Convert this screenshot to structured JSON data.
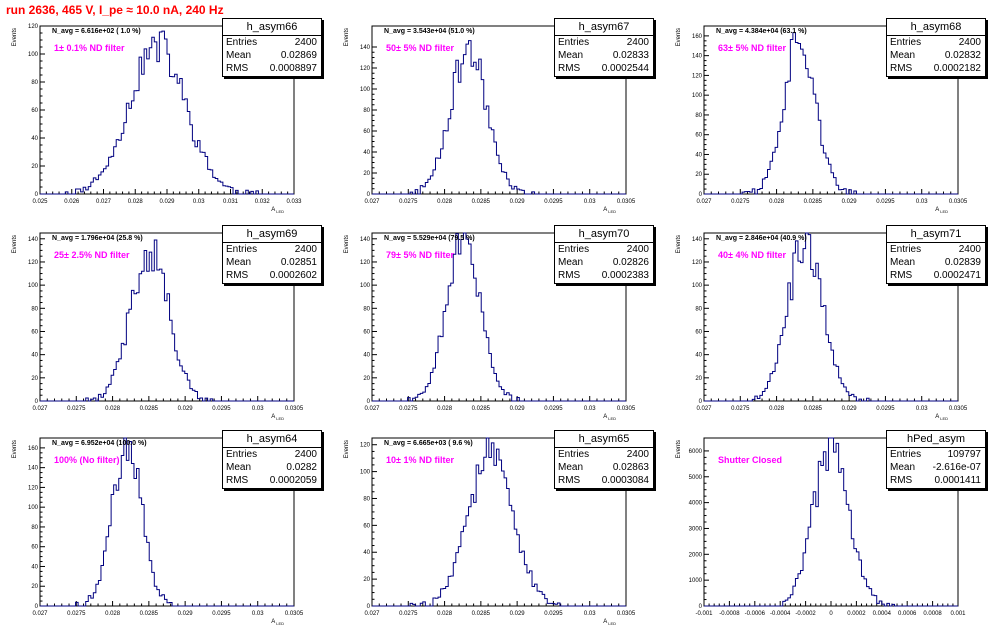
{
  "title": "run 2636,   465 V, I_pe ≈ 10.0 nA, 240 Hz",
  "colors": {
    "title": "#ff0000",
    "histogram": "#000080",
    "label": "#ff00ff",
    "frame": "#000000"
  },
  "stat_labels": {
    "entries": "Entries",
    "mean": "Mean",
    "rms": "RMS"
  },
  "chart_data": [
    {
      "type": "histogram",
      "name": "h_asym66",
      "ylabel": "Events",
      "xlabel": "A_LED",
      "n_avg": "N_avg = 6.616e+02 ( 1.0 %)",
      "filter": "1± 0.1% ND filter",
      "stats": {
        "entries": "2400",
        "mean": "0.02869",
        "rms": "0.0008897"
      },
      "xlim": [
        0.025,
        0.033
      ],
      "ylim": [
        0,
        120
      ],
      "x_ticks": [
        "0.025",
        "0.026",
        "0.027",
        "0.028",
        "0.029",
        "0.03",
        "0.031",
        "0.032",
        "0.033"
      ],
      "y_ticks": [
        "0",
        "20",
        "40",
        "60",
        "80",
        "100",
        "120"
      ],
      "shape": {
        "mean": 0.02869,
        "sigma": 0.00089,
        "peak": 105,
        "seed": 11
      }
    },
    {
      "type": "histogram",
      "name": "h_asym67",
      "ylabel": "Events",
      "xlabel": "A_LED",
      "n_avg": "N_avg = 3.543e+04 (51.0 %)",
      "filter": "50± 5% ND filter",
      "stats": {
        "entries": "2400",
        "mean": "0.02833",
        "rms": "0.0002544"
      },
      "xlim": [
        0.027,
        0.0305
      ],
      "ylim": [
        0,
        160
      ],
      "x_ticks": [
        "0.027",
        "0.0275",
        "0.028",
        "0.0285",
        "0.029",
        "0.0295",
        "0.03",
        "0.0305"
      ],
      "y_ticks": [
        "0",
        "20",
        "40",
        "60",
        "80",
        "100",
        "120",
        "140"
      ],
      "shape": {
        "mean": 0.02833,
        "sigma": 0.000254,
        "peak": 138,
        "seed": 23
      }
    },
    {
      "type": "histogram",
      "name": "h_asym68",
      "ylabel": "Events",
      "xlabel": "A_LED",
      "n_avg": "N_avg = 4.384e+04 (63.1 %)",
      "filter": "63± 5% ND filter",
      "stats": {
        "entries": "2400",
        "mean": "0.02832",
        "rms": "0.0002182"
      },
      "xlim": [
        0.027,
        0.0305
      ],
      "ylim": [
        0,
        170
      ],
      "x_ticks": [
        "0.027",
        "0.0275",
        "0.028",
        "0.0285",
        "0.029",
        "0.0295",
        "0.03",
        "0.0305"
      ],
      "y_ticks": [
        "0",
        "20",
        "40",
        "60",
        "80",
        "100",
        "120",
        "140",
        "160"
      ],
      "shape": {
        "mean": 0.02832,
        "sigma": 0.000218,
        "peak": 160,
        "seed": 37
      }
    },
    {
      "type": "histogram",
      "name": "h_asym69",
      "ylabel": "Events",
      "xlabel": "A_LED",
      "n_avg": "N_avg = 1.796e+04 (25.8 %)",
      "filter": "25± 2.5% ND filter",
      "stats": {
        "entries": "2400",
        "mean": "0.02851",
        "rms": "0.0002602"
      },
      "xlim": [
        0.027,
        0.0305
      ],
      "ylim": [
        0,
        145
      ],
      "x_ticks": [
        "0.027",
        "0.0275",
        "0.028",
        "0.0285",
        "0.029",
        "0.0295",
        "0.03",
        "0.0305"
      ],
      "y_ticks": [
        "0",
        "20",
        "40",
        "60",
        "80",
        "100",
        "120",
        "140"
      ],
      "shape": {
        "mean": 0.02851,
        "sigma": 0.00026,
        "peak": 132,
        "seed": 41
      }
    },
    {
      "type": "histogram",
      "name": "h_asym70",
      "ylabel": "Events",
      "xlabel": "A_LED",
      "n_avg": "N_avg = 5.529e+04 (79.5 %)",
      "filter": "79± 5% ND filter",
      "stats": {
        "entries": "2400",
        "mean": "0.02826",
        "rms": "0.0002383"
      },
      "xlim": [
        0.027,
        0.0305
      ],
      "ylim": [
        0,
        145
      ],
      "x_ticks": [
        "0.027",
        "0.0275",
        "0.028",
        "0.0285",
        "0.029",
        "0.0295",
        "0.03",
        "0.0305"
      ],
      "y_ticks": [
        "0",
        "20",
        "40",
        "60",
        "80",
        "100",
        "120",
        "140"
      ],
      "shape": {
        "mean": 0.02826,
        "sigma": 0.000238,
        "peak": 140,
        "seed": 53
      }
    },
    {
      "type": "histogram",
      "name": "h_asym71",
      "ylabel": "Events",
      "xlabel": "A_LED",
      "n_avg": "N_avg = 2.846e+04 (40.9 %)",
      "filter": "40± 4% ND filter",
      "stats": {
        "entries": "2400",
        "mean": "0.02839",
        "rms": "0.0002471"
      },
      "xlim": [
        0.027,
        0.0305
      ],
      "ylim": [
        0,
        145
      ],
      "x_ticks": [
        "0.027",
        "0.0275",
        "0.028",
        "0.0285",
        "0.029",
        "0.0295",
        "0.03",
        "0.0305"
      ],
      "y_ticks": [
        "0",
        "20",
        "40",
        "60",
        "80",
        "100",
        "120",
        "140"
      ],
      "shape": {
        "mean": 0.02839,
        "sigma": 0.000247,
        "peak": 135,
        "seed": 67
      }
    },
    {
      "type": "histogram",
      "name": "h_asym64",
      "ylabel": "Events",
      "xlabel": "A_LED",
      "n_avg": "N_avg = 6.952e+04 (100.0 %)",
      "filter": "100% (No filter)",
      "stats": {
        "entries": "2400",
        "mean": "0.0282",
        "rms": "0.0002059"
      },
      "xlim": [
        0.027,
        0.0305
      ],
      "ylim": [
        0,
        170
      ],
      "x_ticks": [
        "0.027",
        "0.0275",
        "0.028",
        "0.0285",
        "0.029",
        "0.0295",
        "0.03",
        "0.0305"
      ],
      "y_ticks": [
        "0",
        "20",
        "40",
        "60",
        "80",
        "100",
        "120",
        "140",
        "160"
      ],
      "shape": {
        "mean": 0.0282,
        "sigma": 0.000206,
        "peak": 162,
        "seed": 71
      }
    },
    {
      "type": "histogram",
      "name": "h_asym65",
      "ylabel": "Events",
      "xlabel": "A_LED",
      "n_avg": "N_avg = 6.665e+03 ( 9.6 %)",
      "filter": "10± 1% ND filter",
      "stats": {
        "entries": "2400",
        "mean": "0.02863",
        "rms": "0.0003084"
      },
      "xlim": [
        0.027,
        0.0305
      ],
      "ylim": [
        0,
        125
      ],
      "x_ticks": [
        "0.027",
        "0.0275",
        "0.028",
        "0.0285",
        "0.029",
        "0.0295",
        "0.03",
        "0.0305"
      ],
      "y_ticks": [
        "0",
        "20",
        "40",
        "60",
        "80",
        "100",
        "120"
      ],
      "shape": {
        "mean": 0.02863,
        "sigma": 0.000308,
        "peak": 112,
        "seed": 83
      }
    },
    {
      "type": "histogram",
      "name": "hPed_asym",
      "ylabel": "Events",
      "xlabel": "",
      "n_avg": "",
      "filter": "Shutter Closed",
      "stats": {
        "entries": "109797",
        "mean": "-2.616e-07",
        "rms": "0.0001411"
      },
      "xlim": [
        -0.001,
        0.001
      ],
      "ylim": [
        0,
        6500
      ],
      "x_ticks": [
        "-0.001",
        "-0.0008",
        "-0.0006",
        "-0.0004",
        "-0.0002",
        "0",
        "0.0002",
        "0.0004",
        "0.0006",
        "0.0008",
        "0.001"
      ],
      "y_ticks": [
        "0",
        "1000",
        "2000",
        "3000",
        "4000",
        "5000",
        "6000"
      ],
      "shape": {
        "mean": 0.0,
        "sigma": 0.000141,
        "peak": 6150,
        "seed": 97
      }
    }
  ]
}
